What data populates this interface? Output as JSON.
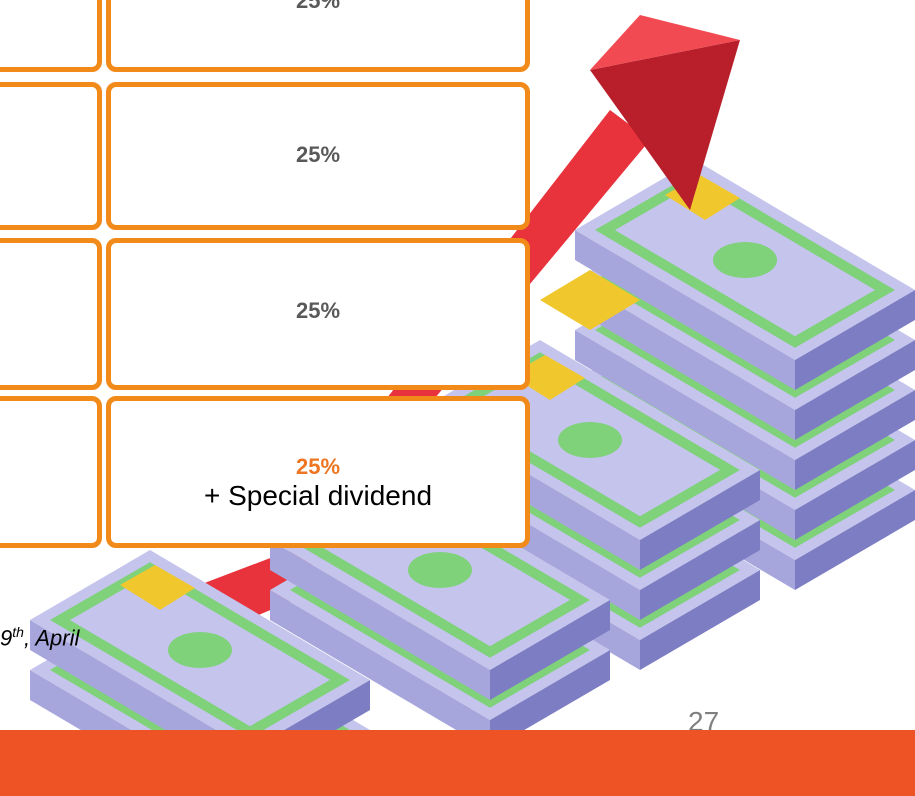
{
  "table": {
    "rows": [
      {
        "value": "25%"
      },
      {
        "value": "25%"
      },
      {
        "value": "25%"
      },
      {
        "value": "25%",
        "note": "+ Special dividend"
      }
    ]
  },
  "footnote": {
    "day": "9",
    "suffix": "th",
    "rest": ", April"
  },
  "page_number": "27"
}
